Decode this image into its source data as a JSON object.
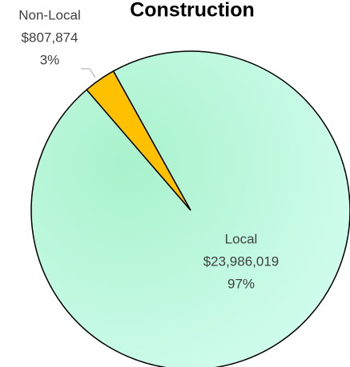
{
  "chart_data": {
    "type": "pie",
    "title": "Construction",
    "categories": [
      "Local",
      "Non-Local"
    ],
    "values": [
      23986019,
      807874
    ],
    "value_labels": [
      "$23,986,019",
      "$807,874"
    ],
    "percentages": [
      97,
      3
    ],
    "percentage_labels": [
      "97%",
      "3%"
    ],
    "colors": [
      "#c8f9e4",
      "#ffc000"
    ]
  }
}
